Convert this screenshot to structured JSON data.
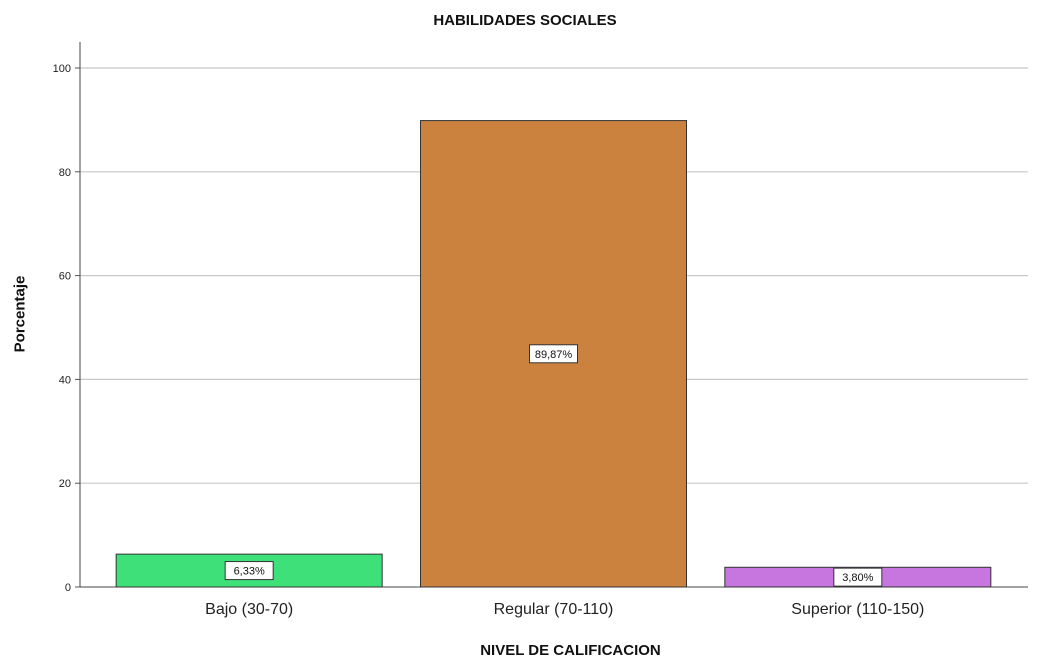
{
  "chart_data": {
    "type": "bar",
    "title": "HABILIDADES SOCIALES",
    "xlabel": "NIVEL DE CALIFICACION",
    "ylabel": "Porcentaje",
    "categories": [
      "Bajo (30-70)",
      "Regular (70-110)",
      "Superior (110-150)"
    ],
    "values": [
      6.33,
      89.87,
      3.8
    ],
    "data_labels": [
      "6,33%",
      "89,87%",
      "3,80%"
    ],
    "colors": [
      "#3ee07a",
      "#cc823f",
      "#c776e0"
    ],
    "ylim": [
      0,
      100
    ],
    "yticks": [
      0,
      20,
      40,
      60,
      80,
      100
    ],
    "grid": true,
    "legend": "none"
  }
}
